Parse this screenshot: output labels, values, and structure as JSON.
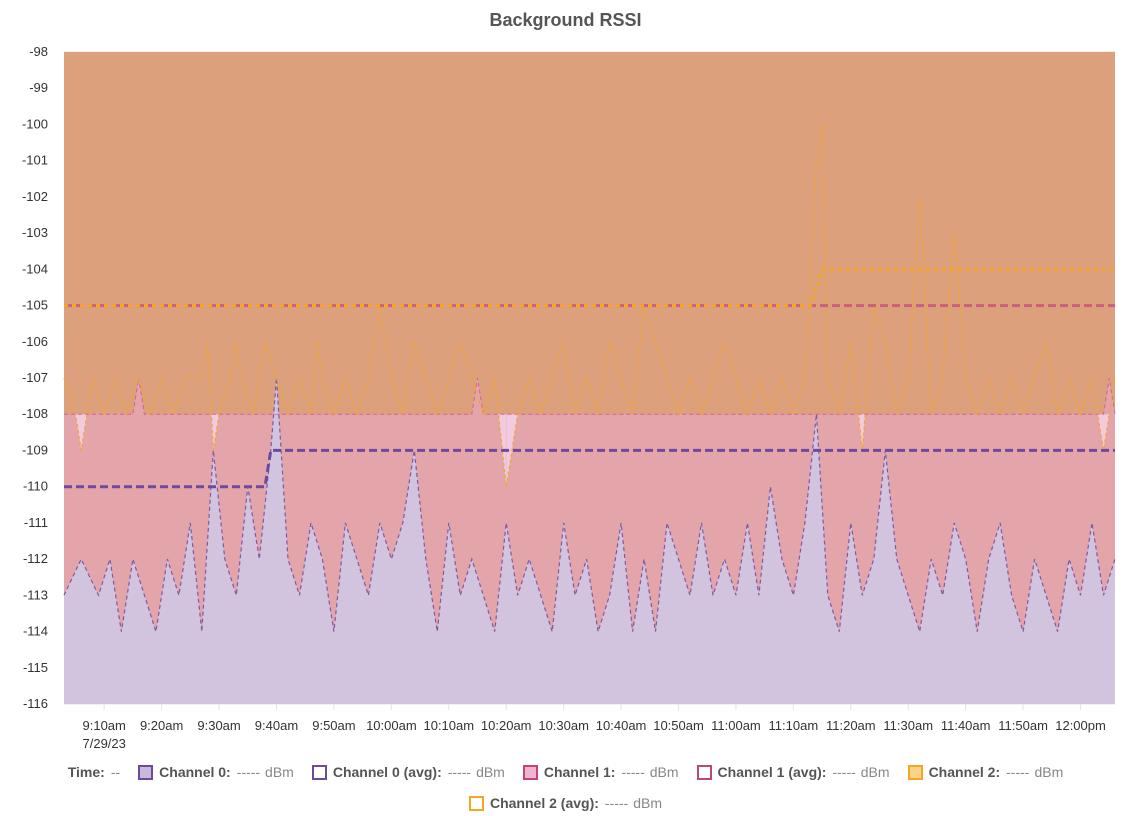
{
  "chart_data": {
    "type": "area",
    "title": "Background RSSI",
    "xlabel": "",
    "ylabel": "",
    "ylim": [
      -116,
      -98
    ],
    "yticks": [
      -98,
      -99,
      -100,
      -101,
      -102,
      -103,
      -104,
      -105,
      -106,
      -107,
      -108,
      -109,
      -110,
      -111,
      -112,
      -113,
      -114,
      -115,
      -116
    ],
    "xlim": [
      "09:03",
      "12:06"
    ],
    "xticks": [
      "9:10am",
      "9:20am",
      "9:30am",
      "9:40am",
      "9:50am",
      "10:00am",
      "10:10am",
      "10:20am",
      "10:30am",
      "10:40am",
      "10:50am",
      "11:00am",
      "11:10am",
      "11:20am",
      "11:30am",
      "11:40am",
      "11:50am",
      "12:00pm"
    ],
    "xtick_times": [
      "09:10",
      "09:20",
      "09:30",
      "09:40",
      "09:50",
      "10:00",
      "10:10",
      "10:20",
      "10:30",
      "10:40",
      "10:50",
      "11:00",
      "11:10",
      "11:20",
      "11:30",
      "11:40",
      "11:50",
      "12:00"
    ],
    "date_label": "7/29/23",
    "grid": true,
    "series": [
      {
        "name": "Channel 0",
        "color": "#7c5ba6",
        "fill": "#d2c4de",
        "values": [
          [
            "09:03",
            -113
          ],
          [
            "09:06",
            -112
          ],
          [
            "09:09",
            -113
          ],
          [
            "09:11",
            -112
          ],
          [
            "09:13",
            -114
          ],
          [
            "09:15",
            -112
          ],
          [
            "09:17",
            -113
          ],
          [
            "09:19",
            -114
          ],
          [
            "09:21",
            -112
          ],
          [
            "09:23",
            -113
          ],
          [
            "09:25",
            -111
          ],
          [
            "09:27",
            -114
          ],
          [
            "09:29",
            -109
          ],
          [
            "09:31",
            -112
          ],
          [
            "09:33",
            -113
          ],
          [
            "09:35",
            -110
          ],
          [
            "09:37",
            -112
          ],
          [
            "09:39",
            -109
          ],
          [
            "09:40",
            -107
          ],
          [
            "09:42",
            -112
          ],
          [
            "09:44",
            -113
          ],
          [
            "09:46",
            -111
          ],
          [
            "09:48",
            -112
          ],
          [
            "09:50",
            -114
          ],
          [
            "09:52",
            -111
          ],
          [
            "09:54",
            -112
          ],
          [
            "09:56",
            -113
          ],
          [
            "09:58",
            -111
          ],
          [
            "10:00",
            -112
          ],
          [
            "10:02",
            -111
          ],
          [
            "10:04",
            -109
          ],
          [
            "10:06",
            -112
          ],
          [
            "10:08",
            -114
          ],
          [
            "10:10",
            -111
          ],
          [
            "10:12",
            -113
          ],
          [
            "10:14",
            -112
          ],
          [
            "10:16",
            -113
          ],
          [
            "10:18",
            -114
          ],
          [
            "10:20",
            -111
          ],
          [
            "10:22",
            -113
          ],
          [
            "10:24",
            -112
          ],
          [
            "10:26",
            -113
          ],
          [
            "10:28",
            -114
          ],
          [
            "10:30",
            -111
          ],
          [
            "10:32",
            -113
          ],
          [
            "10:34",
            -112
          ],
          [
            "10:36",
            -114
          ],
          [
            "10:38",
            -113
          ],
          [
            "10:40",
            -111
          ],
          [
            "10:42",
            -114
          ],
          [
            "10:44",
            -112
          ],
          [
            "10:46",
            -114
          ],
          [
            "10:48",
            -111
          ],
          [
            "10:50",
            -112
          ],
          [
            "10:52",
            -113
          ],
          [
            "10:54",
            -111
          ],
          [
            "10:56",
            -113
          ],
          [
            "10:58",
            -112
          ],
          [
            "11:00",
            -113
          ],
          [
            "11:02",
            -111
          ],
          [
            "11:04",
            -113
          ],
          [
            "11:06",
            -110
          ],
          [
            "11:08",
            -112
          ],
          [
            "11:10",
            -113
          ],
          [
            "11:12",
            -111
          ],
          [
            "11:14",
            -108
          ],
          [
            "11:16",
            -113
          ],
          [
            "11:18",
            -114
          ],
          [
            "11:20",
            -111
          ],
          [
            "11:22",
            -113
          ],
          [
            "11:24",
            -112
          ],
          [
            "11:26",
            -109
          ],
          [
            "11:28",
            -112
          ],
          [
            "11:30",
            -113
          ],
          [
            "11:32",
            -114
          ],
          [
            "11:34",
            -112
          ],
          [
            "11:36",
            -113
          ],
          [
            "11:38",
            -111
          ],
          [
            "11:40",
            -112
          ],
          [
            "11:42",
            -114
          ],
          [
            "11:44",
            -112
          ],
          [
            "11:46",
            -111
          ],
          [
            "11:48",
            -113
          ],
          [
            "11:50",
            -114
          ],
          [
            "11:52",
            -112
          ],
          [
            "11:54",
            -113
          ],
          [
            "11:56",
            -114
          ],
          [
            "11:58",
            -112
          ],
          [
            "12:00",
            -113
          ],
          [
            "12:02",
            -111
          ],
          [
            "12:04",
            -113
          ],
          [
            "12:06",
            -112
          ]
        ]
      },
      {
        "name": "Channel 0 (avg)",
        "color": "#6e4a9e",
        "values": [
          [
            "09:03",
            -110
          ],
          [
            "09:38",
            -110
          ],
          [
            "09:39",
            -109
          ],
          [
            "12:06",
            -109
          ]
        ]
      },
      {
        "name": "Channel 1",
        "color": "#d0449a",
        "fill": "#e7a6c8",
        "values": [
          [
            "09:03",
            -108
          ],
          [
            "09:15",
            -108
          ],
          [
            "09:16",
            -107
          ],
          [
            "09:17",
            -108
          ],
          [
            "10:14",
            -108
          ],
          [
            "10:15",
            -107
          ],
          [
            "10:16",
            -108
          ],
          [
            "12:04",
            -108
          ],
          [
            "12:05",
            -107
          ],
          [
            "12:06",
            -108
          ]
        ]
      },
      {
        "name": "Channel 1 (avg)",
        "color": "#c2447a",
        "values": [
          [
            "09:03",
            -105
          ],
          [
            "12:06",
            -105
          ]
        ]
      },
      {
        "name": "Channel 2",
        "color": "#f5a623",
        "fill": "#dca07d",
        "values": [
          [
            "09:03",
            -107
          ],
          [
            "09:05",
            -108
          ],
          [
            "09:06",
            -109
          ],
          [
            "09:08",
            -107
          ],
          [
            "09:10",
            -108
          ],
          [
            "09:12",
            -107
          ],
          [
            "09:14",
            -108
          ],
          [
            "09:16",
            -107
          ],
          [
            "09:18",
            -108
          ],
          [
            "09:20",
            -107
          ],
          [
            "09:22",
            -108
          ],
          [
            "09:24",
            -107
          ],
          [
            "09:27",
            -107
          ],
          [
            "09:28",
            -106
          ],
          [
            "09:29",
            -109
          ],
          [
            "09:30",
            -108
          ],
          [
            "09:32",
            -107
          ],
          [
            "09:33",
            -106
          ],
          [
            "09:34",
            -107
          ],
          [
            "09:36",
            -108
          ],
          [
            "09:38",
            -106
          ],
          [
            "09:40",
            -107
          ],
          [
            "09:42",
            -108
          ],
          [
            "09:44",
            -107
          ],
          [
            "09:46",
            -108
          ],
          [
            "09:47",
            -106
          ],
          [
            "09:48",
            -107
          ],
          [
            "09:50",
            -108
          ],
          [
            "09:52",
            -107
          ],
          [
            "09:54",
            -108
          ],
          [
            "09:56",
            -107
          ],
          [
            "09:58",
            -105
          ],
          [
            "10:00",
            -107
          ],
          [
            "10:02",
            -108
          ],
          [
            "10:04",
            -106
          ],
          [
            "10:06",
            -107
          ],
          [
            "10:08",
            -108
          ],
          [
            "10:10",
            -107
          ],
          [
            "10:12",
            -106
          ],
          [
            "10:14",
            -107
          ],
          [
            "10:16",
            -108
          ],
          [
            "10:18",
            -107
          ],
          [
            "10:20",
            -110
          ],
          [
            "10:22",
            -108
          ],
          [
            "10:24",
            -107
          ],
          [
            "10:26",
            -108
          ],
          [
            "10:28",
            -107
          ],
          [
            "10:30",
            -106
          ],
          [
            "10:32",
            -108
          ],
          [
            "10:34",
            -107
          ],
          [
            "10:36",
            -108
          ],
          [
            "10:38",
            -106
          ],
          [
            "10:40",
            -107
          ],
          [
            "10:42",
            -108
          ],
          [
            "10:44",
            -105
          ],
          [
            "10:46",
            -106
          ],
          [
            "10:48",
            -107
          ],
          [
            "10:50",
            -108
          ],
          [
            "10:52",
            -107
          ],
          [
            "10:54",
            -108
          ],
          [
            "10:56",
            -107
          ],
          [
            "10:58",
            -106
          ],
          [
            "11:00",
            -107
          ],
          [
            "11:02",
            -108
          ],
          [
            "11:04",
            -107
          ],
          [
            "11:06",
            -108
          ],
          [
            "11:08",
            -107
          ],
          [
            "11:10",
            -108
          ],
          [
            "11:12",
            -107
          ],
          [
            "11:14",
            -101
          ],
          [
            "11:15",
            -100
          ],
          [
            "11:16",
            -107
          ],
          [
            "11:18",
            -108
          ],
          [
            "11:20",
            -106
          ],
          [
            "11:22",
            -109
          ],
          [
            "11:24",
            -105
          ],
          [
            "11:26",
            -106
          ],
          [
            "11:28",
            -108
          ],
          [
            "11:30",
            -107
          ],
          [
            "11:32",
            -102
          ],
          [
            "11:34",
            -108
          ],
          [
            "11:36",
            -107
          ],
          [
            "11:38",
            -103
          ],
          [
            "11:40",
            -107
          ],
          [
            "11:42",
            -108
          ],
          [
            "11:44",
            -107
          ],
          [
            "11:46",
            -108
          ],
          [
            "11:48",
            -107
          ],
          [
            "11:50",
            -108
          ],
          [
            "11:52",
            -107
          ],
          [
            "11:54",
            -106
          ],
          [
            "11:56",
            -108
          ],
          [
            "11:58",
            -107
          ],
          [
            "12:00",
            -108
          ],
          [
            "12:02",
            -107
          ],
          [
            "12:04",
            -109
          ],
          [
            "12:06",
            -107
          ]
        ]
      },
      {
        "name": "Channel 2 (avg)",
        "color": "#f5a623",
        "values": [
          [
            "09:03",
            -105
          ],
          [
            "11:13",
            -105
          ],
          [
            "11:15",
            -104
          ],
          [
            "12:06",
            -104
          ]
        ]
      }
    ]
  },
  "legend": {
    "time_label": "Time:",
    "time_value": "--",
    "items": [
      {
        "label": "Channel 0:",
        "value": "-----",
        "unit": "dBm",
        "border": "#6e4a9e",
        "fill": "#c9b8dc"
      },
      {
        "label": "Channel 0 (avg):",
        "value": "-----",
        "unit": "dBm",
        "border": "#6e4a9e",
        "fill": "#ffffff"
      },
      {
        "label": "Channel 1:",
        "value": "-----",
        "unit": "dBm",
        "border": "#c2447a",
        "fill": "#f0b3d2"
      },
      {
        "label": "Channel 1 (avg):",
        "value": "-----",
        "unit": "dBm",
        "border": "#c2447a",
        "fill": "#ffffff"
      },
      {
        "label": "Channel 2:",
        "value": "-----",
        "unit": "dBm",
        "border": "#f5a623",
        "fill": "#f9d38c"
      },
      {
        "label": "Channel 2 (avg):",
        "value": "-----",
        "unit": "dBm",
        "border": "#f5a623",
        "fill": "#ffffff"
      }
    ]
  }
}
